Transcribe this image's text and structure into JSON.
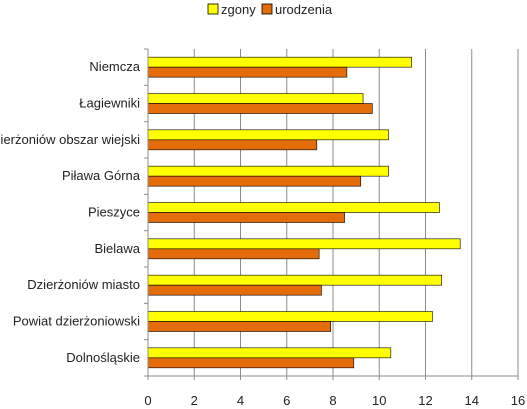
{
  "chart_data": {
    "type": "bar",
    "orientation": "horizontal",
    "title": "",
    "xlabel": "",
    "ylabel": "",
    "categories": [
      "Niemcza",
      "Łagiewniki",
      "Dzierżoniów obszar wiejski",
      "Piława Górna",
      "Pieszyce",
      "Bielawa",
      "Dzierżoniów miasto",
      "Powiat dzierżoniowski",
      "Dolnośląskie"
    ],
    "series": [
      {
        "name": "zgony",
        "color": "#ffff00",
        "values": [
          11.4,
          9.3,
          10.4,
          10.4,
          12.6,
          13.5,
          12.7,
          12.3,
          10.5
        ]
      },
      {
        "name": "urodzenia",
        "color": "#e46c0a",
        "values": [
          8.6,
          9.7,
          7.3,
          9.2,
          8.5,
          7.4,
          7.5,
          7.9,
          8.9
        ]
      }
    ],
    "xlim": [
      0,
      16
    ],
    "xticks": [
      0,
      2,
      4,
      6,
      8,
      10,
      12,
      14,
      16
    ],
    "grid": true,
    "legend_position": "top"
  }
}
